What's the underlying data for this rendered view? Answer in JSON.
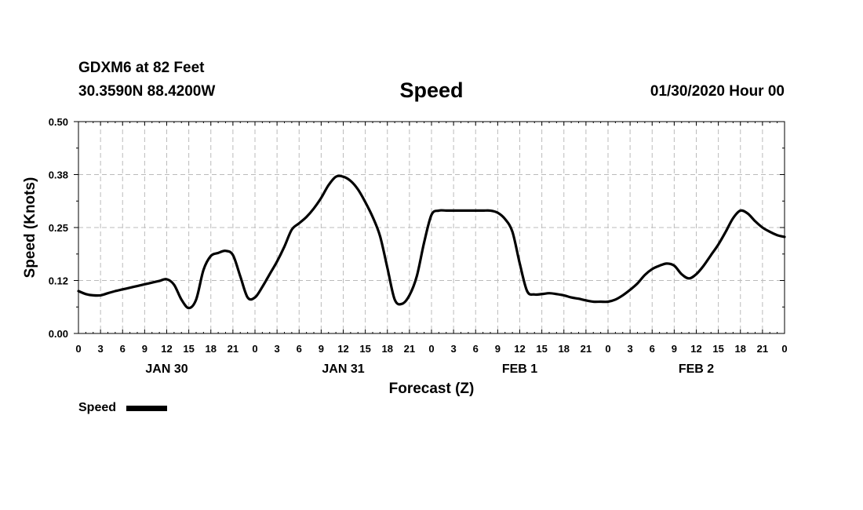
{
  "header": {
    "station": "GDXM6 at 82 Feet",
    "coords": "30.3590N 88.4200W",
    "title": "Speed",
    "datetime": "01/30/2020 Hour 00"
  },
  "colors": {
    "line": "#000000",
    "grid": "#bbbbbb"
  },
  "chart_data": {
    "type": "line",
    "title": "Speed",
    "xlabel": "Forecast (Z)",
    "ylabel": "Speed (Knots)",
    "x_unit": "forecast hour",
    "xlim": [
      0,
      96
    ],
    "ylim": [
      0,
      0.5
    ],
    "grid": true,
    "y_ticks": [
      0.0,
      0.125,
      0.25,
      0.375,
      0.5
    ],
    "y_tick_labels": [
      "0.00",
      "0.12",
      "0.25",
      "0.38",
      "0.50"
    ],
    "x_tick_labels": [
      "0",
      "3",
      "6",
      "9",
      "12",
      "15",
      "18",
      "21",
      "0",
      "3",
      "6",
      "9",
      "12",
      "15",
      "18",
      "21",
      "0",
      "3",
      "6",
      "9",
      "12",
      "15",
      "18",
      "21",
      "0",
      "3",
      "6",
      "9",
      "12",
      "15",
      "18",
      "21",
      "0"
    ],
    "day_labels": [
      {
        "label": "JAN 30",
        "hour": 12
      },
      {
        "label": "JAN 31",
        "hour": 36
      },
      {
        "label": "FEB 1",
        "hour": 60
      },
      {
        "label": "FEB 2",
        "hour": 84
      }
    ],
    "legend": {
      "position": "bottom-left",
      "entries": [
        "Speed"
      ]
    },
    "series": [
      {
        "name": "Speed",
        "x": [
          0,
          1,
          2,
          3,
          4,
          5,
          6,
          7,
          8,
          9,
          10,
          11,
          12,
          13,
          14,
          15,
          16,
          17,
          18,
          19,
          20,
          21,
          22,
          23,
          24,
          25,
          26,
          27,
          28,
          29,
          30,
          31,
          32,
          33,
          34,
          35,
          36,
          37,
          38,
          39,
          40,
          41,
          42,
          43,
          44,
          45,
          46,
          47,
          48,
          49,
          50,
          51,
          52,
          53,
          54,
          55,
          56,
          57,
          58,
          59,
          60,
          61,
          62,
          63,
          64,
          65,
          66,
          67,
          68,
          69,
          70,
          71,
          72,
          73,
          74,
          75,
          76,
          77,
          78,
          79,
          80,
          81,
          82,
          83,
          84,
          85,
          86,
          87,
          88,
          89,
          90,
          91,
          92,
          93,
          94,
          95,
          96
        ],
        "y": [
          0.1,
          0.093,
          0.09,
          0.09,
          0.095,
          0.1,
          0.104,
          0.108,
          0.112,
          0.116,
          0.12,
          0.124,
          0.128,
          0.115,
          0.08,
          0.06,
          0.08,
          0.15,
          0.183,
          0.19,
          0.195,
          0.185,
          0.135,
          0.085,
          0.085,
          0.11,
          0.14,
          0.17,
          0.205,
          0.245,
          0.26,
          0.275,
          0.295,
          0.32,
          0.35,
          0.37,
          0.37,
          0.36,
          0.34,
          0.31,
          0.275,
          0.23,
          0.155,
          0.08,
          0.07,
          0.09,
          0.135,
          0.215,
          0.28,
          0.29,
          0.29,
          0.29,
          0.29,
          0.29,
          0.29,
          0.29,
          0.29,
          0.285,
          0.27,
          0.24,
          0.165,
          0.1,
          0.092,
          0.093,
          0.095,
          0.093,
          0.09,
          0.085,
          0.082,
          0.078,
          0.075,
          0.075,
          0.075,
          0.08,
          0.09,
          0.103,
          0.118,
          0.138,
          0.152,
          0.16,
          0.165,
          0.16,
          0.14,
          0.13,
          0.14,
          0.16,
          0.185,
          0.21,
          0.24,
          0.272,
          0.29,
          0.283,
          0.265,
          0.25,
          0.24,
          0.232,
          0.228
        ]
      }
    ]
  }
}
